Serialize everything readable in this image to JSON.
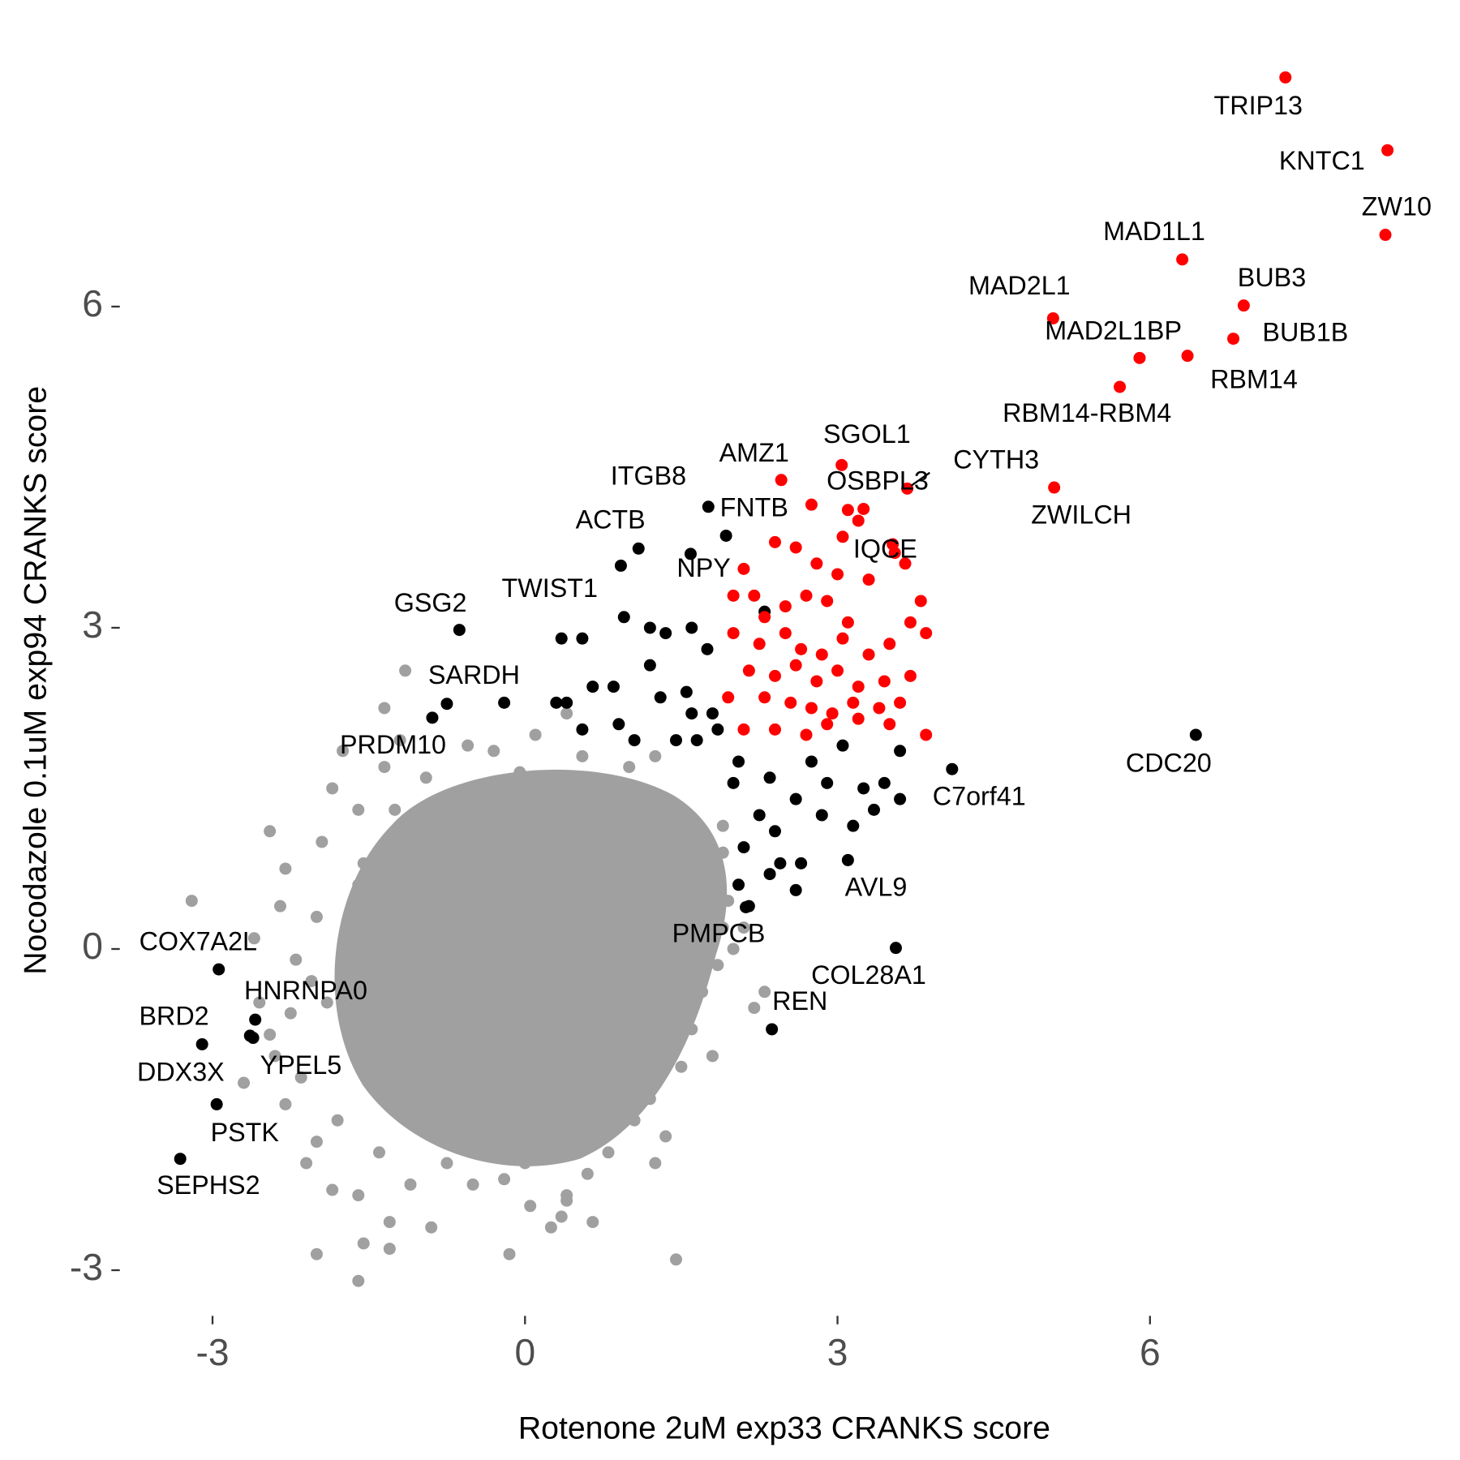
{
  "chart_data": {
    "type": "scatter",
    "xlabel": "Rotenone 2uM exp33 CRANKS score",
    "ylabel": "Nocodazole 0.1uM exp94 CRANKS score",
    "xlim": [
      -3.6,
      8.5
    ],
    "ylim": [
      -3.5,
      8.4
    ],
    "xticks": [
      -3,
      0,
      3,
      6
    ],
    "yticks": [
      -3,
      0,
      3,
      6
    ],
    "grid": false,
    "series": [
      {
        "color": "#a0a0a0",
        "x": [
          -3.2,
          -2.35,
          -2.0,
          -1.6,
          -2.45,
          -1.85,
          -1.75,
          -1.2,
          -1.35,
          -1.15,
          -1.35,
          -0.95,
          -0.55,
          -0.3,
          0.1,
          0.2,
          0.4,
          0.7,
          1.0,
          1.25,
          1.5,
          1.9,
          1.9,
          1.75,
          1.9,
          2.0,
          1.7,
          1.6,
          1.5,
          1.2,
          1.05,
          0.8,
          0.6,
          0.4,
          0.35,
          0.05,
          -0.2,
          -0.5,
          -0.75,
          -1.1,
          -1.3,
          -1.6,
          -1.85,
          -2.0,
          -1.55,
          -1.6,
          -0.15,
          1.45,
          0.4,
          -2.3,
          -2.15,
          -2.0,
          -2.4,
          -2.25,
          -2.05,
          -2.2,
          -1.9,
          -1.7,
          -1.55,
          -1.25,
          -0.85,
          -2.7,
          -2.55,
          -1.8,
          -1.4,
          -0.9,
          0.25,
          0.65,
          1.25,
          1.35,
          2.2,
          1.85,
          2.1,
          1.95,
          1.55,
          0.9,
          0.55,
          -0.05,
          -0.6,
          -1.6,
          -1.95,
          -2.3,
          -2.6,
          -2.45,
          -2.1,
          -1.3,
          0.0,
          1.1,
          1.8,
          2.3
        ],
        "values": [
          0.45,
          0.4,
          0.3,
          0.6,
          1.1,
          1.5,
          1.85,
          1.95,
          2.25,
          2.6,
          1.7,
          1.6,
          1.9,
          1.85,
          2.0,
          1.6,
          2.2,
          1.5,
          1.7,
          1.8,
          1.3,
          1.15,
          0.9,
          0.6,
          0.2,
          0.0,
          -0.4,
          -0.75,
          -1.1,
          -1.4,
          -1.6,
          -1.9,
          -2.1,
          -2.3,
          -2.5,
          -2.4,
          -2.15,
          -2.2,
          -2.0,
          -2.2,
          -2.55,
          -2.3,
          -2.25,
          -2.85,
          -2.75,
          -3.1,
          -2.85,
          -2.9,
          -2.35,
          -1.45,
          -1.2,
          -1.8,
          -1.0,
          -0.6,
          -0.3,
          -0.1,
          -0.5,
          0.2,
          0.8,
          1.3,
          1.15,
          -1.25,
          -0.5,
          -1.6,
          -1.9,
          -2.6,
          -2.6,
          -2.55,
          -2.0,
          -1.75,
          -0.55,
          -0.15,
          0.2,
          0.45,
          0.95,
          1.45,
          1.8,
          1.65,
          1.45,
          1.3,
          1.0,
          0.75,
          0.1,
          -0.8,
          -2.0,
          -2.8,
          -2.0,
          -1.2,
          -1.0,
          -0.4
        ]
      },
      {
        "color": "#000000",
        "x": [
          1.76,
          1.93,
          1.09,
          1.59,
          0.92,
          -0.63,
          -0.75,
          -0.89,
          6.44,
          4.1,
          3.1,
          2.12,
          3.56,
          2.37,
          -2.94,
          -2.59,
          -3.1,
          -2.61,
          -2.64,
          -2.96,
          -3.31,
          2.3,
          1.6,
          1.75,
          0.95,
          1.2,
          1.35,
          0.35,
          0.55,
          1.2,
          1.55,
          0.85,
          0.65,
          1.3,
          0.3,
          0.4,
          1.6,
          1.8,
          0.9,
          1.05,
          1.45,
          1.65,
          1.85,
          0.55,
          -0.2,
          2.05,
          2.35,
          2.75,
          3.05,
          3.6,
          3.45,
          3.25,
          2.9,
          2.0,
          2.25,
          2.4,
          2.6,
          2.85,
          3.15,
          3.35,
          3.6,
          2.1,
          2.45,
          2.65,
          2.05,
          2.35,
          2.15,
          2.6
        ],
        "values": [
          4.13,
          3.86,
          3.74,
          3.69,
          3.58,
          2.98,
          2.29,
          2.16,
          2.0,
          1.68,
          0.83,
          0.39,
          0.01,
          -0.75,
          -0.19,
          -0.66,
          -0.89,
          -0.83,
          -0.81,
          -1.45,
          -1.96,
          3.15,
          3.0,
          2.8,
          3.1,
          3.0,
          2.95,
          2.9,
          2.9,
          2.65,
          2.4,
          2.45,
          2.45,
          2.35,
          2.3,
          2.3,
          2.2,
          2.2,
          2.1,
          1.95,
          1.95,
          1.95,
          2.05,
          2.05,
          2.3,
          1.75,
          1.6,
          1.75,
          1.9,
          1.85,
          1.55,
          1.5,
          1.55,
          1.55,
          1.25,
          1.1,
          1.4,
          1.25,
          1.15,
          1.3,
          1.4,
          0.95,
          0.8,
          0.8,
          0.6,
          0.7,
          0.4,
          0.55
        ],
        "labels": [
          "ITGB8",
          "FNTB",
          "ACTB",
          "NPY",
          "TWIST1",
          "GSG2",
          "SARDH",
          "PRDM10",
          "CDC20",
          "C7orf41",
          "AVL9",
          "PMPCB",
          "COL28A1",
          "REN",
          "COX7A2L",
          "HNRNPA0",
          "BRD2",
          "YPEL5",
          "DDX3X",
          "PSTK",
          "SEPHS2",
          null,
          null,
          null,
          null,
          null,
          null,
          null,
          null,
          null,
          null,
          null,
          null,
          null,
          null,
          null,
          null,
          null,
          null,
          null,
          null,
          null,
          null,
          null,
          null,
          null,
          null,
          null,
          null,
          null,
          null,
          null,
          null,
          null,
          null,
          null,
          null,
          null,
          null,
          null,
          null,
          null,
          null,
          null,
          null,
          null,
          null,
          null
        ]
      },
      {
        "color": "#ff0000",
        "x": [
          7.3,
          8.28,
          8.26,
          6.31,
          6.9,
          5.07,
          6.8,
          5.9,
          6.36,
          5.71,
          3.67,
          5.08,
          3.04,
          2.46,
          3.25,
          3.53,
          2.1,
          2.2,
          2.4,
          2.6,
          2.8,
          3.0,
          3.2,
          3.3,
          3.65,
          2.0,
          2.3,
          2.5,
          2.7,
          2.9,
          3.1,
          3.8,
          3.7,
          3.85,
          2.0,
          2.25,
          2.5,
          2.65,
          2.85,
          3.05,
          3.3,
          3.5,
          2.15,
          2.4,
          2.6,
          2.8,
          3.0,
          3.2,
          3.45,
          3.7,
          1.95,
          2.3,
          2.55,
          2.75,
          2.95,
          3.15,
          3.4,
          3.6,
          2.1,
          2.4,
          2.7,
          2.9,
          3.2,
          3.5,
          3.85,
          3.1,
          2.75,
          3.05,
          3.55
        ],
        "values": [
          8.14,
          7.46,
          6.67,
          6.44,
          6.01,
          5.89,
          5.7,
          5.52,
          5.54,
          5.25,
          4.3,
          4.31,
          4.52,
          4.38,
          4.11,
          3.78,
          3.55,
          3.3,
          3.8,
          3.75,
          3.6,
          3.5,
          4.0,
          3.45,
          3.6,
          3.3,
          3.1,
          3.2,
          3.3,
          3.25,
          3.05,
          3.25,
          3.05,
          2.95,
          2.95,
          2.85,
          2.95,
          2.8,
          2.75,
          2.9,
          2.75,
          2.85,
          2.6,
          2.55,
          2.65,
          2.5,
          2.6,
          2.45,
          2.5,
          2.55,
          2.35,
          2.35,
          2.3,
          2.25,
          2.2,
          2.3,
          2.25,
          2.3,
          2.05,
          2.05,
          2.0,
          2.1,
          2.15,
          2.1,
          2.0,
          4.1,
          4.15,
          3.85,
          3.7
        ],
        "labels": [
          "TRIP13",
          "KNTC1",
          "ZW10",
          "MAD1L1",
          "BUB3",
          "MAD2L1",
          "BUB1B",
          "MAD2L1BP",
          "RBM14",
          "RBM14-RBM4",
          "CYTH3",
          "ZWILCH",
          "SGOL1",
          "AMZ1",
          "OSBPL3",
          "IQCE",
          null,
          null,
          null,
          null,
          null,
          null,
          null,
          null,
          null,
          null,
          null,
          null,
          null,
          null,
          null,
          null,
          null,
          null,
          null,
          null,
          null,
          null,
          null,
          null,
          null,
          null,
          null,
          null,
          null,
          null,
          null,
          null,
          null,
          null,
          null,
          null,
          null,
          null,
          null,
          null,
          null,
          null,
          null,
          null,
          null,
          null,
          null,
          null,
          null,
          null,
          null,
          null,
          null
        ]
      }
    ]
  }
}
